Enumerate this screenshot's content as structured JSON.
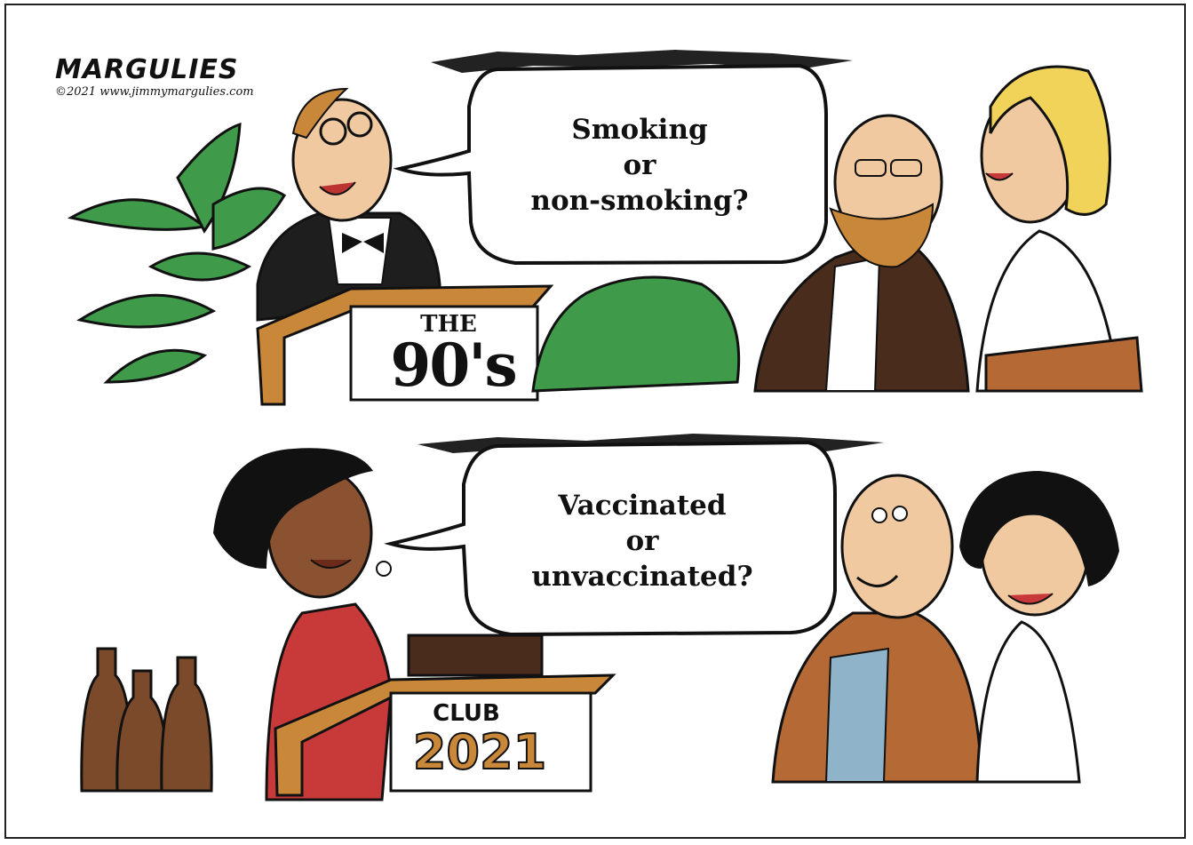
{
  "cartoon": {
    "signature_name": "MARGULIES",
    "signature_url": "©2021 www.jimmymargulies.com",
    "panel_top": {
      "speech": [
        "Smoking",
        "or",
        "non-smoking?"
      ],
      "sign_small": "THE",
      "sign_big": "90's"
    },
    "panel_bottom": {
      "speech": [
        "Vaccinated",
        "or",
        "unvaccinated?"
      ],
      "sign_small": "CLUB",
      "sign_big": "2021"
    }
  },
  "colors": {
    "ink": "#111111",
    "skin": "#f0c9a0",
    "brown": "#7a4a2a",
    "wood": "#c9873a",
    "plant": "#3f9a4a",
    "red": "#c83a3a",
    "hair_blonde": "#f2d35a"
  }
}
